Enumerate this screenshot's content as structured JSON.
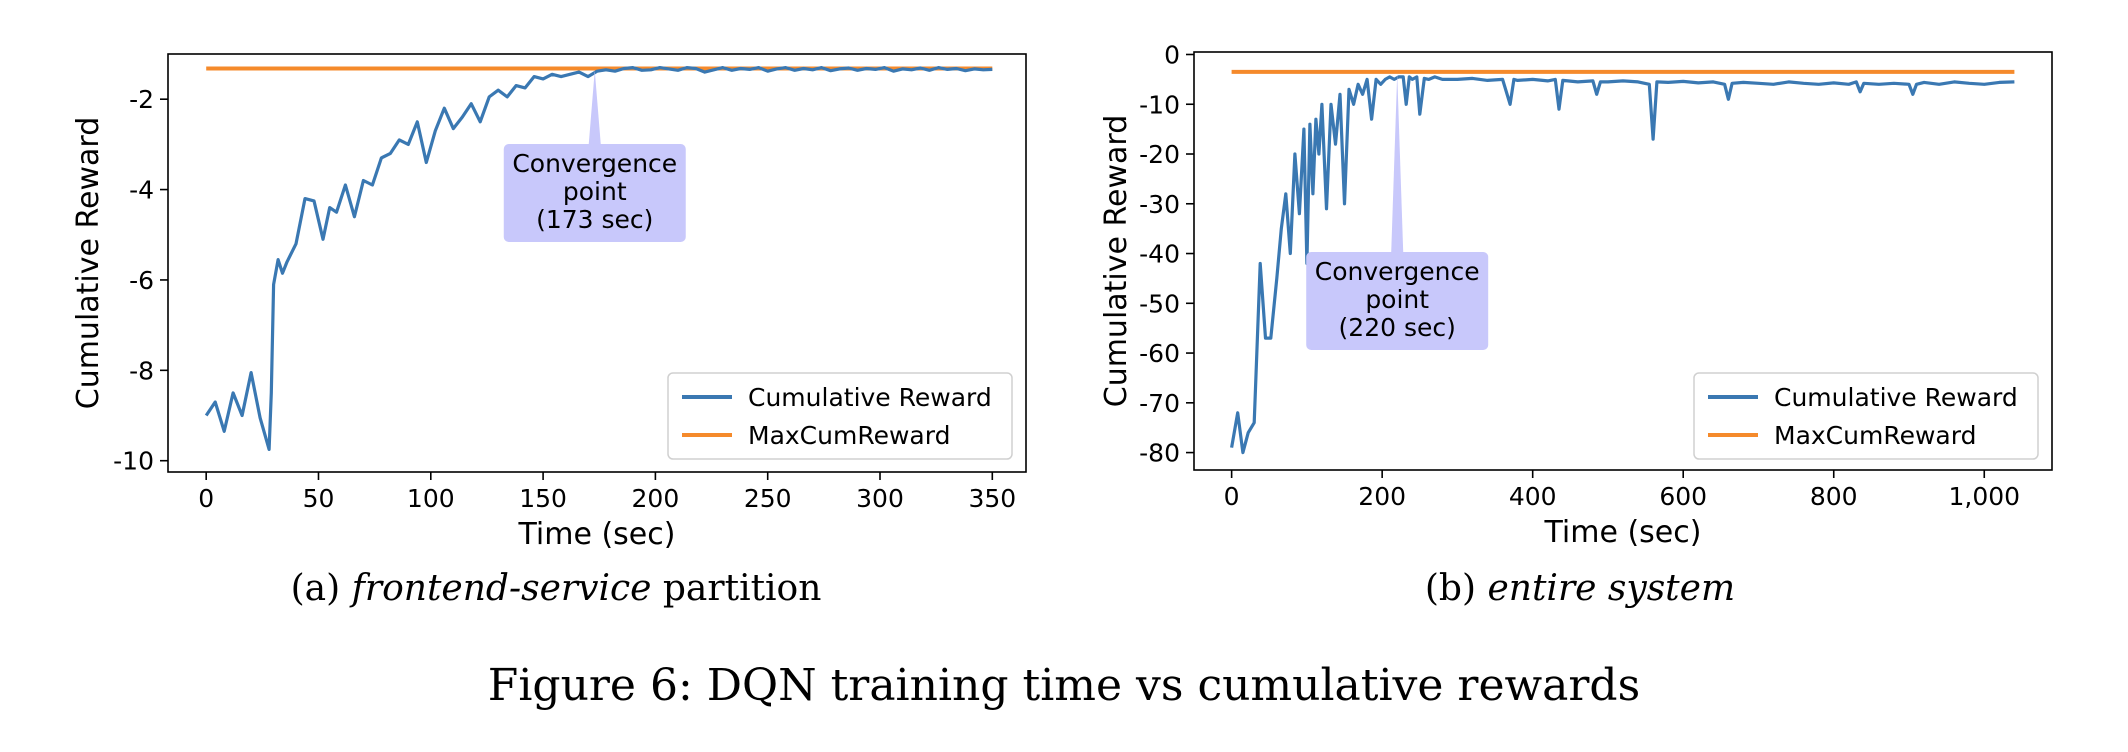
{
  "figure_caption": "Figure 6: DQN training time vs cumulative rewards",
  "chart_data": [
    {
      "type": "line",
      "caption_prefix": "(a) ",
      "caption_italic": "frontend-service",
      "caption_suffix": " partition",
      "xlabel": "Time (sec)",
      "ylabel": "Cumulative Reward",
      "xlim": [
        -17,
        365
      ],
      "ylim": [
        -10.25,
        -1.0
      ],
      "xticks": [
        0,
        50,
        100,
        150,
        200,
        250,
        300,
        350
      ],
      "xtick_labels": [
        "0",
        "50",
        "100",
        "150",
        "200",
        "250",
        "300",
        "350"
      ],
      "yticks": [
        -10,
        -8,
        -6,
        -4,
        -2
      ],
      "ytick_labels": [
        "-10",
        "-8",
        "-6",
        "-4",
        "-2"
      ],
      "legend_position": "lower-right",
      "colors": {
        "reward": "#3A78B2",
        "max": "#F58A2B",
        "callout": "#C8C8FB"
      },
      "annotation": {
        "lines": [
          "Convergence",
          "point",
          "(173 sec)"
        ],
        "x": 173
      },
      "series": [
        {
          "name": "Cumulative Reward",
          "x": [
            0,
            4,
            8,
            12,
            16,
            20,
            24,
            28,
            29,
            30,
            32,
            34,
            36,
            40,
            44,
            48,
            52,
            55,
            58,
            62,
            66,
            70,
            74,
            78,
            82,
            86,
            90,
            94,
            98,
            102,
            106,
            110,
            114,
            118,
            122,
            126,
            130,
            134,
            138,
            142,
            146,
            150,
            154,
            158,
            162,
            166,
            170,
            174,
            178,
            182,
            186,
            190,
            194,
            198,
            202,
            206,
            210,
            214,
            218,
            222,
            226,
            230,
            234,
            238,
            242,
            246,
            250,
            254,
            258,
            262,
            266,
            270,
            274,
            278,
            282,
            286,
            290,
            294,
            298,
            302,
            306,
            310,
            314,
            318,
            322,
            326,
            330,
            334,
            338,
            342,
            346,
            350
          ],
          "y": [
            -9.0,
            -8.7,
            -9.35,
            -8.5,
            -9.0,
            -8.05,
            -9.05,
            -9.75,
            -8.5,
            -6.1,
            -5.55,
            -5.85,
            -5.6,
            -5.2,
            -4.2,
            -4.25,
            -5.1,
            -4.4,
            -4.5,
            -3.9,
            -4.6,
            -3.8,
            -3.9,
            -3.3,
            -3.2,
            -2.9,
            -3.0,
            -2.5,
            -3.4,
            -2.7,
            -2.2,
            -2.65,
            -2.4,
            -2.1,
            -2.5,
            -1.95,
            -1.8,
            -1.95,
            -1.7,
            -1.75,
            -1.5,
            -1.55,
            -1.45,
            -1.5,
            -1.45,
            -1.4,
            -1.5,
            -1.38,
            -1.35,
            -1.38,
            -1.32,
            -1.3,
            -1.36,
            -1.35,
            -1.3,
            -1.33,
            -1.36,
            -1.3,
            -1.32,
            -1.4,
            -1.35,
            -1.3,
            -1.36,
            -1.32,
            -1.34,
            -1.3,
            -1.38,
            -1.33,
            -1.3,
            -1.36,
            -1.32,
            -1.35,
            -1.3,
            -1.37,
            -1.33,
            -1.31,
            -1.36,
            -1.32,
            -1.34,
            -1.3,
            -1.38,
            -1.33,
            -1.35,
            -1.31,
            -1.36,
            -1.3,
            -1.34,
            -1.32,
            -1.37,
            -1.33,
            -1.35,
            -1.34
          ]
        },
        {
          "name": "MaxCumReward",
          "x": [
            0,
            350
          ],
          "y": [
            -1.32,
            -1.32
          ]
        }
      ]
    },
    {
      "type": "line",
      "caption_prefix": "(b) ",
      "caption_italic": "entire system",
      "caption_suffix": "",
      "xlabel": "Time (sec)",
      "ylabel": "Cumulative Reward",
      "xlim": [
        -50,
        1090
      ],
      "ylim": [
        -83.5,
        0.5
      ],
      "xticks": [
        0,
        200,
        400,
        600,
        800,
        1000
      ],
      "xtick_labels": [
        "0",
        "200",
        "400",
        "600",
        "800",
        "1,000"
      ],
      "yticks": [
        -80,
        -70,
        -60,
        -50,
        -40,
        -30,
        -20,
        -10,
        0
      ],
      "ytick_labels": [
        "-80",
        "-70",
        "-60",
        "-50",
        "-40",
        "-30",
        "-20",
        "-10",
        "0"
      ],
      "legend_position": "lower-right",
      "colors": {
        "reward": "#3A78B2",
        "max": "#F58A2B",
        "callout": "#C8C8FB"
      },
      "annotation": {
        "lines": [
          "Convergence",
          "point",
          "(220 sec)"
        ],
        "x": 220
      },
      "series": [
        {
          "name": "Cumulative Reward",
          "x": [
            0,
            8,
            15,
            22,
            30,
            38,
            45,
            52,
            60,
            66,
            72,
            78,
            84,
            90,
            96,
            100,
            104,
            108,
            112,
            116,
            120,
            126,
            132,
            138,
            144,
            150,
            156,
            162,
            168,
            174,
            180,
            186,
            192,
            198,
            204,
            210,
            216,
            222,
            228,
            232,
            236,
            240,
            246,
            250,
            256,
            262,
            270,
            280,
            300,
            320,
            340,
            360,
            370,
            375,
            380,
            400,
            420,
            430,
            435,
            440,
            460,
            480,
            485,
            490,
            500,
            520,
            540,
            555,
            560,
            565,
            580,
            600,
            620,
            640,
            655,
            660,
            665,
            680,
            700,
            720,
            740,
            760,
            780,
            800,
            820,
            830,
            835,
            840,
            860,
            880,
            900,
            905,
            910,
            920,
            940,
            960,
            980,
            1000,
            1020,
            1040
          ],
          "y": [
            -79,
            -72,
            -80,
            -76,
            -74,
            -42,
            -57,
            -57,
            -45,
            -35,
            -28,
            -40,
            -20,
            -32,
            -15,
            -42,
            -14,
            -28,
            -13,
            -20,
            -10,
            -31,
            -10,
            -18,
            -8,
            -30,
            -7,
            -10,
            -6,
            -8,
            -5,
            -13,
            -5,
            -6,
            -5,
            -4.5,
            -5,
            -4.5,
            -4.5,
            -10,
            -4.5,
            -5,
            -4.5,
            -12,
            -4.8,
            -5,
            -4.5,
            -5,
            -5,
            -4.8,
            -5.2,
            -5,
            -10,
            -5,
            -5.2,
            -5,
            -5.3,
            -5,
            -11,
            -5.2,
            -5.5,
            -5.3,
            -8,
            -5.5,
            -5.5,
            -5.3,
            -5.5,
            -6,
            -17,
            -5.5,
            -5.6,
            -5.4,
            -5.7,
            -5.5,
            -6,
            -9,
            -5.8,
            -5.6,
            -5.8,
            -6,
            -5.5,
            -5.8,
            -6,
            -5.7,
            -6,
            -5.5,
            -7.5,
            -5.8,
            -6,
            -5.8,
            -6,
            -8,
            -6,
            -5.6,
            -6,
            -5.5,
            -5.8,
            -6,
            -5.6,
            -5.5
          ]
        },
        {
          "name": "MaxCumReward",
          "x": [
            0,
            1040
          ],
          "y": [
            -3.5,
            -3.5
          ]
        }
      ]
    }
  ]
}
